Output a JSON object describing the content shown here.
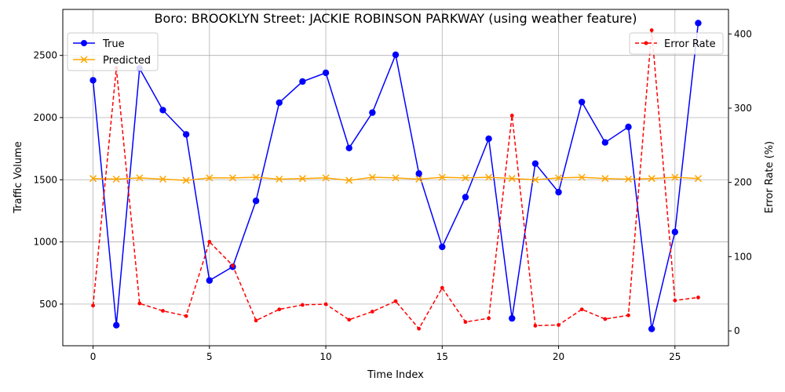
{
  "chart_data": {
    "type": "line",
    "title": "Boro: BROOKLYN Street: JACKIE ROBINSON PARKWAY (using weather feature)",
    "xlabel": "Time Index",
    "ylabel": "Traffic Volume",
    "y2label": "Error Rate (%)",
    "x": [
      0,
      1,
      2,
      3,
      4,
      5,
      6,
      7,
      8,
      9,
      10,
      11,
      12,
      13,
      14,
      15,
      16,
      17,
      18,
      19,
      20,
      21,
      22,
      23,
      24,
      25,
      26
    ],
    "xlim": [
      -1.3,
      27.3
    ],
    "ylim": [
      165,
      2870
    ],
    "y2lim": [
      -20,
      433
    ],
    "xticks": [
      "0",
      "5",
      "10",
      "15",
      "20",
      "25"
    ],
    "yticks": [
      "500",
      "1000",
      "1500",
      "2000",
      "2500"
    ],
    "y2ticks": [
      "0",
      "100",
      "200",
      "300",
      "400"
    ],
    "grid": true,
    "series": [
      {
        "name": "True",
        "axis": "left",
        "color": "#0000ff",
        "marker": "circle",
        "values": [
          2300,
          330,
          2395,
          2060,
          1865,
          690,
          800,
          1330,
          2120,
          2290,
          2360,
          1755,
          2040,
          2505,
          1550,
          960,
          1360,
          1830,
          385,
          1630,
          1400,
          2125,
          1800,
          1925,
          300,
          1080,
          2760
        ]
      },
      {
        "name": "Predicted",
        "axis": "left",
        "color": "#ffa500",
        "marker": "x",
        "values": [
          1510,
          1505,
          1515,
          1505,
          1495,
          1515,
          1515,
          1520,
          1505,
          1510,
          1515,
          1495,
          1520,
          1515,
          1505,
          1520,
          1515,
          1520,
          1510,
          1500,
          1515,
          1520,
          1510,
          1505,
          1510,
          1520,
          1510
        ]
      },
      {
        "name": "Error Rate",
        "axis": "right",
        "color": "#ff0000",
        "marker": "dot",
        "dashed": true,
        "values": [
          34,
          354,
          37,
          27,
          20,
          120,
          88,
          14,
          29,
          35,
          36,
          15,
          26,
          40,
          3,
          58,
          12,
          17,
          290,
          7,
          8,
          29,
          16,
          21,
          405,
          41,
          45
        ]
      }
    ],
    "legend_left": {
      "placement": "upper-left",
      "entries": [
        "True",
        "Predicted"
      ]
    },
    "legend_right": {
      "placement": "upper-right",
      "entries": [
        "Error Rate"
      ]
    }
  }
}
